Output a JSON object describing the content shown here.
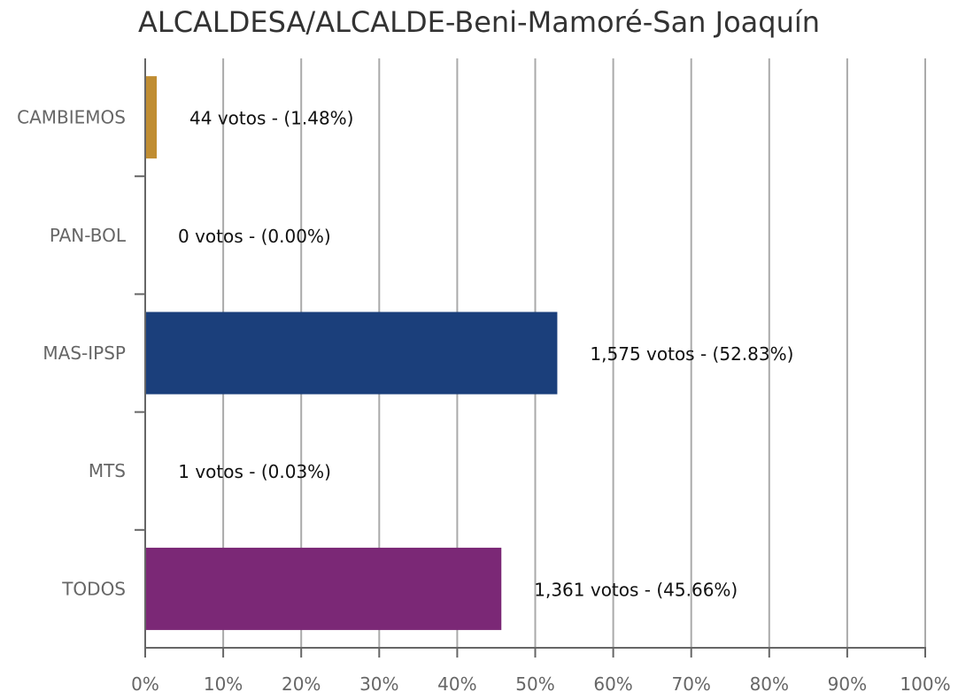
{
  "chart_data": {
    "type": "bar",
    "orientation": "horizontal",
    "title": "ALCALDESA/ALCALDE-Beni-Mamoré-San Joaquín",
    "categories": [
      "CAMBIEMOS",
      "PAN-BOL",
      "MAS-IPSP",
      "MTS",
      "TODOS"
    ],
    "values": [
      1.48,
      0.0,
      52.83,
      0.03,
      45.66
    ],
    "votes": [
      44,
      0,
      1575,
      1,
      1361
    ],
    "data_labels": [
      "44 votos - (1.48%)",
      "0 votos - (0.00%)",
      "1,575 votos - (52.83%)",
      "1 votos - (0.03%)",
      "1,361 votos - (45.66%)"
    ],
    "colors": [
      "#C08D32",
      "#1B3F7B",
      "#1B3F7B",
      "#1B3F7B",
      "#7B2876"
    ],
    "xlim": [
      0,
      100
    ],
    "xticks": [
      "0%",
      "10%",
      "20%",
      "30%",
      "40%",
      "50%",
      "60%",
      "70%",
      "80%",
      "90%",
      "100%"
    ],
    "xlabel": "",
    "ylabel": "",
    "grid": true,
    "legend": "none"
  }
}
